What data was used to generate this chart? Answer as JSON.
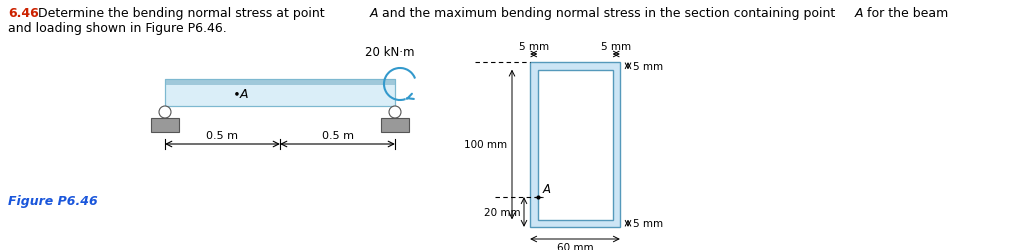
{
  "title_number": "6.46",
  "title_body": "    Determine the bending normal stress at point  A  and the maximum bending normal stress in the section containing point  A  for the beam",
  "line2": "and loading shown in Figure P6.46.",
  "figure_label": "Figure P6.46",
  "moment_label": "20 kN·m",
  "dim_05m": "0.5 m",
  "dim_5mm": "5 mm",
  "dim_100mm": "100 mm",
  "dim_20mm": "20 mm",
  "dim_60mm": "60 mm",
  "label_A": "A",
  "beam_fill": "#daeef8",
  "beam_edge": "#7db8d0",
  "beam_top": "#9fc8da",
  "section_fill": "#cce5f5",
  "section_edge": "#5599bb",
  "support_fill": "#999999",
  "support_edge": "#555555",
  "bg": "#ffffff",
  "blue_text": "#1a56db",
  "red_bold": "#cc2200",
  "moment_arrow_color": "#3399cc",
  "black": "#000000"
}
